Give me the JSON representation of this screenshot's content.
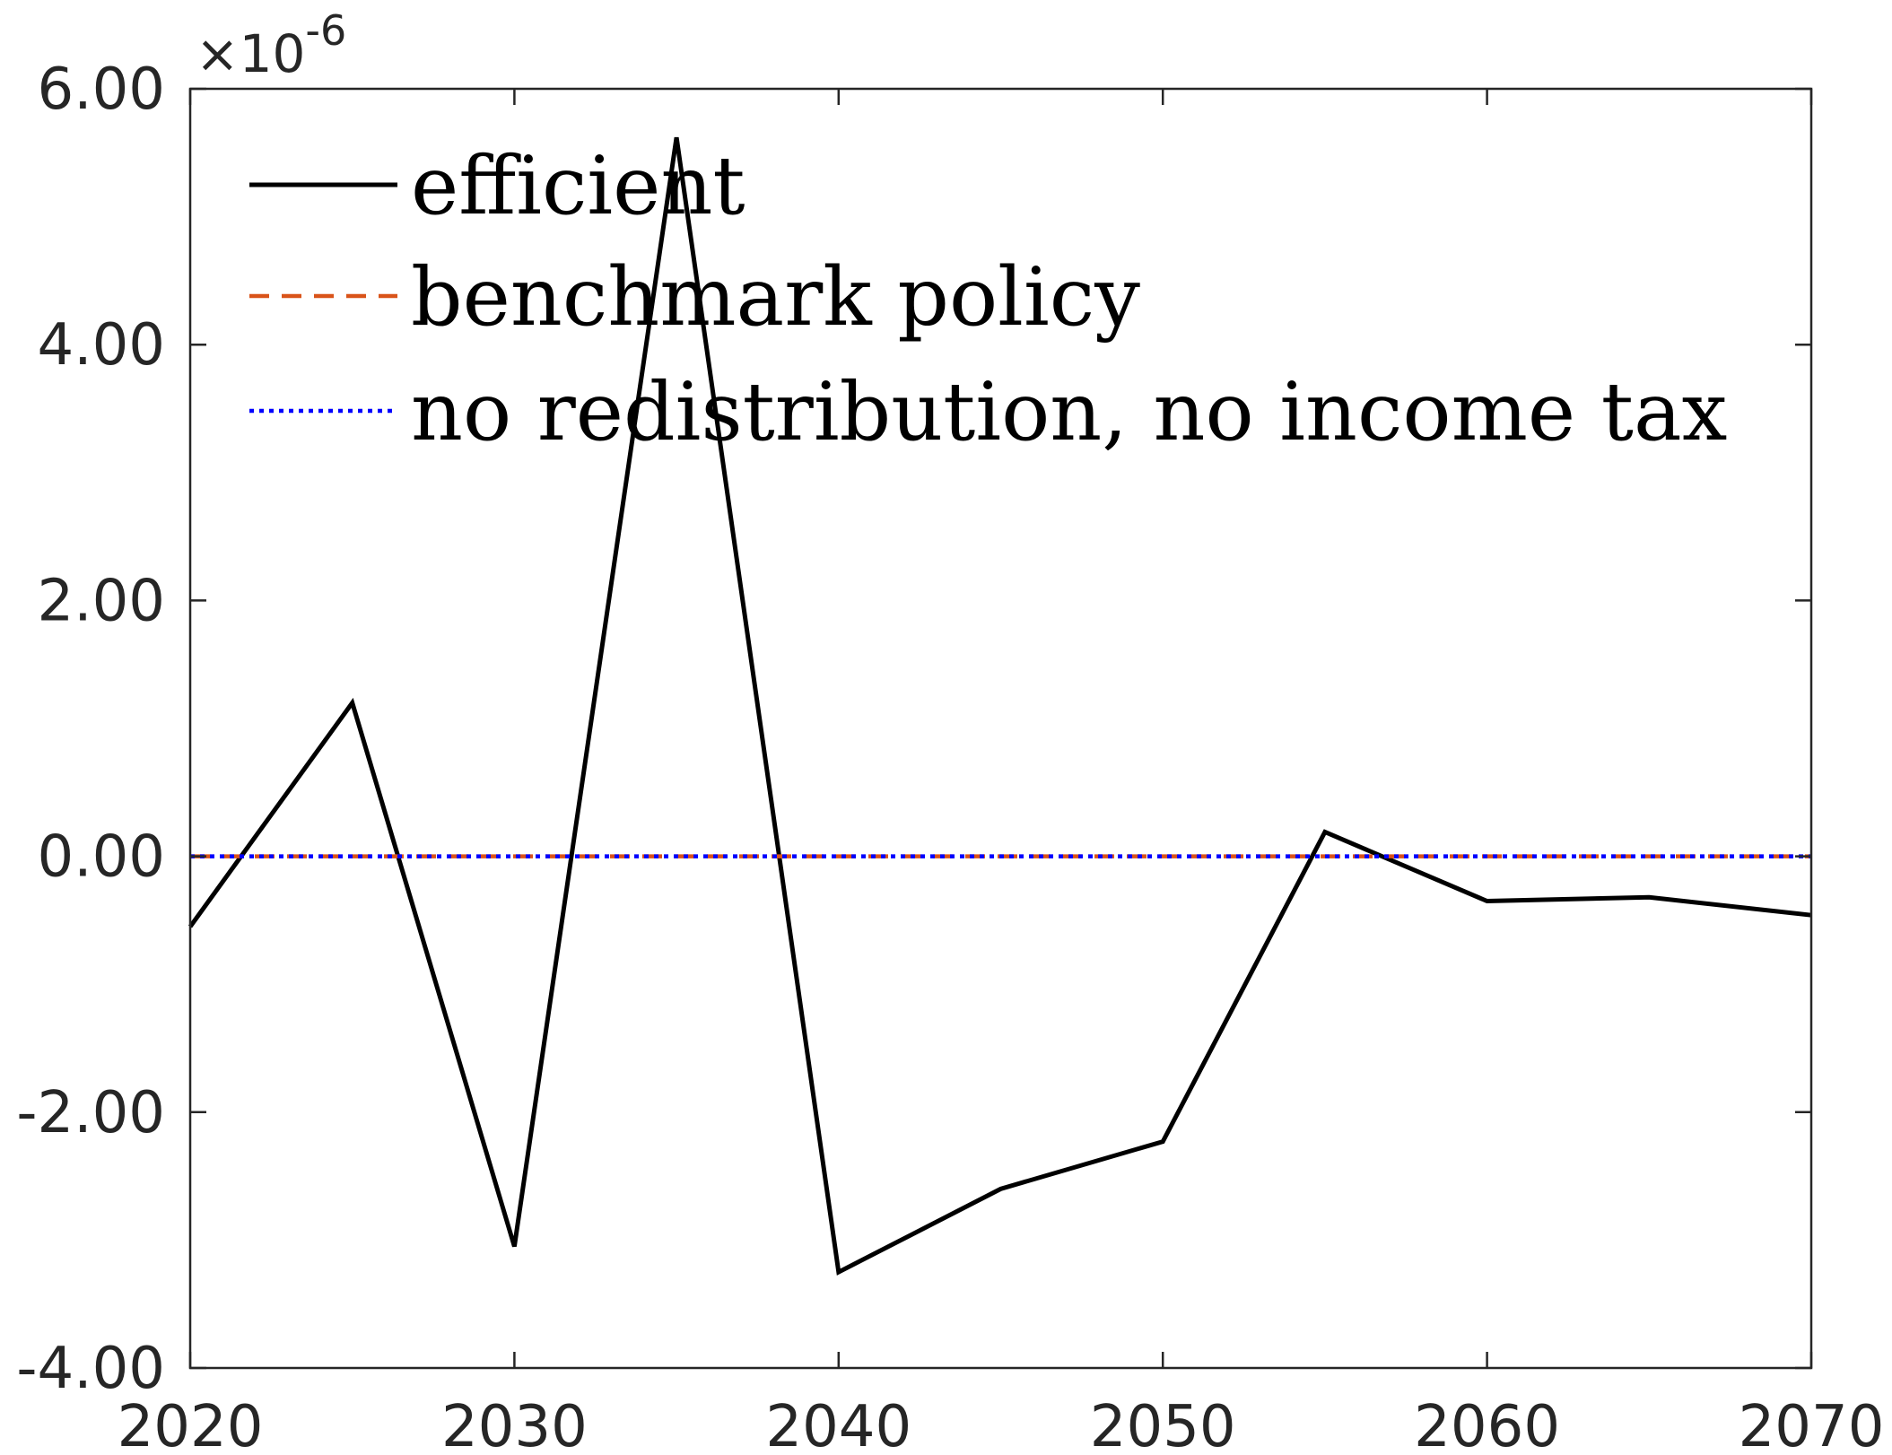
{
  "chart_data": {
    "type": "line",
    "title": "",
    "xlabel": "",
    "ylabel": "",
    "xlim": [
      2020,
      2070
    ],
    "ylim": [
      -4.0,
      6.0
    ],
    "y_multiplier_label": "×10",
    "y_multiplier_exponent": "-6",
    "x_ticks": [
      2020,
      2030,
      2040,
      2050,
      2060,
      2070
    ],
    "x_tick_labels": [
      "2020",
      "2030",
      "2040",
      "2050",
      "2060",
      "2070"
    ],
    "y_ticks": [
      -4,
      -2,
      0,
      2,
      4,
      6
    ],
    "y_tick_labels": [
      "-4.00",
      "-2.00",
      "0.00",
      "2.00",
      "4.00",
      "6.00"
    ],
    "grid": false,
    "legend_position": "top-left",
    "x": [
      2020,
      2025,
      2030,
      2035,
      2040,
      2045,
      2050,
      2055,
      2060,
      2065,
      2070
    ],
    "series": [
      {
        "name": "efficient",
        "color": "#000000",
        "style": "solid",
        "values": [
          -0.55,
          1.2,
          -3.05,
          5.62,
          -3.25,
          -2.6,
          -2.23,
          0.19,
          -0.35,
          -0.32,
          -0.46
        ]
      },
      {
        "name": "benchmark policy",
        "color": "#D95319",
        "style": "dashed",
        "values": [
          0,
          0,
          0,
          0,
          0,
          0,
          0,
          0,
          0,
          0,
          0
        ]
      },
      {
        "name": "no redistribution, no income tax",
        "color": "#0000FF",
        "style": "dotted",
        "values": [
          0,
          0,
          0,
          0,
          0,
          0,
          0,
          0,
          0,
          0,
          0
        ]
      }
    ]
  }
}
